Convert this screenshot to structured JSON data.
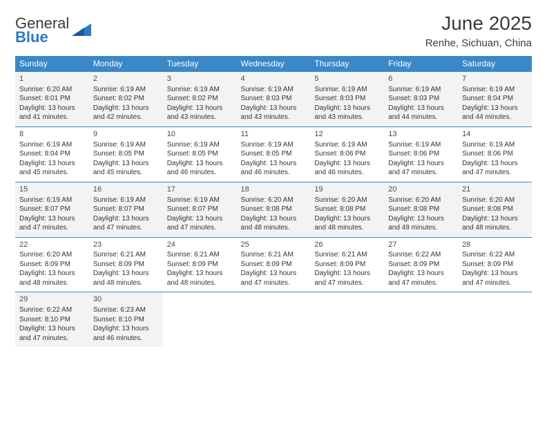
{
  "logo": {
    "word1": "General",
    "word2": "Blue"
  },
  "header": {
    "title": "June 2025",
    "location": "Renhe, Sichuan, China"
  },
  "colors": {
    "header_bg": "#3b88c8",
    "header_text": "#ffffff",
    "gray_row_bg": "#f3f3f3",
    "text": "#333333",
    "logo_gray": "#555555",
    "logo_blue": "#2f78c4",
    "separator": "#3b88c8"
  },
  "weekdays": [
    "Sunday",
    "Monday",
    "Tuesday",
    "Wednesday",
    "Thursday",
    "Friday",
    "Saturday"
  ],
  "weeks": [
    {
      "gray": true,
      "days": [
        {
          "n": "1",
          "sunrise": "6:20 AM",
          "sunset": "8:01 PM",
          "dl": "13 hours and 41 minutes."
        },
        {
          "n": "2",
          "sunrise": "6:19 AM",
          "sunset": "8:02 PM",
          "dl": "13 hours and 42 minutes."
        },
        {
          "n": "3",
          "sunrise": "6:19 AM",
          "sunset": "8:02 PM",
          "dl": "13 hours and 43 minutes."
        },
        {
          "n": "4",
          "sunrise": "6:19 AM",
          "sunset": "8:03 PM",
          "dl": "13 hours and 43 minutes."
        },
        {
          "n": "5",
          "sunrise": "6:19 AM",
          "sunset": "8:03 PM",
          "dl": "13 hours and 43 minutes."
        },
        {
          "n": "6",
          "sunrise": "6:19 AM",
          "sunset": "8:03 PM",
          "dl": "13 hours and 44 minutes."
        },
        {
          "n": "7",
          "sunrise": "6:19 AM",
          "sunset": "8:04 PM",
          "dl": "13 hours and 44 minutes."
        }
      ]
    },
    {
      "gray": false,
      "days": [
        {
          "n": "8",
          "sunrise": "6:19 AM",
          "sunset": "8:04 PM",
          "dl": "13 hours and 45 minutes."
        },
        {
          "n": "9",
          "sunrise": "6:19 AM",
          "sunset": "8:05 PM",
          "dl": "13 hours and 45 minutes."
        },
        {
          "n": "10",
          "sunrise": "6:19 AM",
          "sunset": "8:05 PM",
          "dl": "13 hours and 46 minutes."
        },
        {
          "n": "11",
          "sunrise": "6:19 AM",
          "sunset": "8:05 PM",
          "dl": "13 hours and 46 minutes."
        },
        {
          "n": "12",
          "sunrise": "6:19 AM",
          "sunset": "8:06 PM",
          "dl": "13 hours and 46 minutes."
        },
        {
          "n": "13",
          "sunrise": "6:19 AM",
          "sunset": "8:06 PM",
          "dl": "13 hours and 47 minutes."
        },
        {
          "n": "14",
          "sunrise": "6:19 AM",
          "sunset": "8:06 PM",
          "dl": "13 hours and 47 minutes."
        }
      ]
    },
    {
      "gray": true,
      "days": [
        {
          "n": "15",
          "sunrise": "6:19 AM",
          "sunset": "8:07 PM",
          "dl": "13 hours and 47 minutes."
        },
        {
          "n": "16",
          "sunrise": "6:19 AM",
          "sunset": "8:07 PM",
          "dl": "13 hours and 47 minutes."
        },
        {
          "n": "17",
          "sunrise": "6:19 AM",
          "sunset": "8:07 PM",
          "dl": "13 hours and 47 minutes."
        },
        {
          "n": "18",
          "sunrise": "6:20 AM",
          "sunset": "8:08 PM",
          "dl": "13 hours and 48 minutes."
        },
        {
          "n": "19",
          "sunrise": "6:20 AM",
          "sunset": "8:08 PM",
          "dl": "13 hours and 48 minutes."
        },
        {
          "n": "20",
          "sunrise": "6:20 AM",
          "sunset": "8:08 PM",
          "dl": "13 hours and 48 minutes."
        },
        {
          "n": "21",
          "sunrise": "6:20 AM",
          "sunset": "8:08 PM",
          "dl": "13 hours and 48 minutes."
        }
      ]
    },
    {
      "gray": false,
      "days": [
        {
          "n": "22",
          "sunrise": "6:20 AM",
          "sunset": "8:09 PM",
          "dl": "13 hours and 48 minutes."
        },
        {
          "n": "23",
          "sunrise": "6:21 AM",
          "sunset": "8:09 PM",
          "dl": "13 hours and 48 minutes."
        },
        {
          "n": "24",
          "sunrise": "6:21 AM",
          "sunset": "8:09 PM",
          "dl": "13 hours and 48 minutes."
        },
        {
          "n": "25",
          "sunrise": "6:21 AM",
          "sunset": "8:09 PM",
          "dl": "13 hours and 47 minutes."
        },
        {
          "n": "26",
          "sunrise": "6:21 AM",
          "sunset": "8:09 PM",
          "dl": "13 hours and 47 minutes."
        },
        {
          "n": "27",
          "sunrise": "6:22 AM",
          "sunset": "8:09 PM",
          "dl": "13 hours and 47 minutes."
        },
        {
          "n": "28",
          "sunrise": "6:22 AM",
          "sunset": "8:09 PM",
          "dl": "13 hours and 47 minutes."
        }
      ]
    },
    {
      "gray": true,
      "days": [
        {
          "n": "29",
          "sunrise": "6:22 AM",
          "sunset": "8:10 PM",
          "dl": "13 hours and 47 minutes."
        },
        {
          "n": "30",
          "sunrise": "6:23 AM",
          "sunset": "8:10 PM",
          "dl": "13 hours and 46 minutes."
        },
        null,
        null,
        null,
        null,
        null
      ]
    }
  ],
  "labels": {
    "sunrise": "Sunrise:",
    "sunset": "Sunset:",
    "daylight": "Daylight:"
  }
}
